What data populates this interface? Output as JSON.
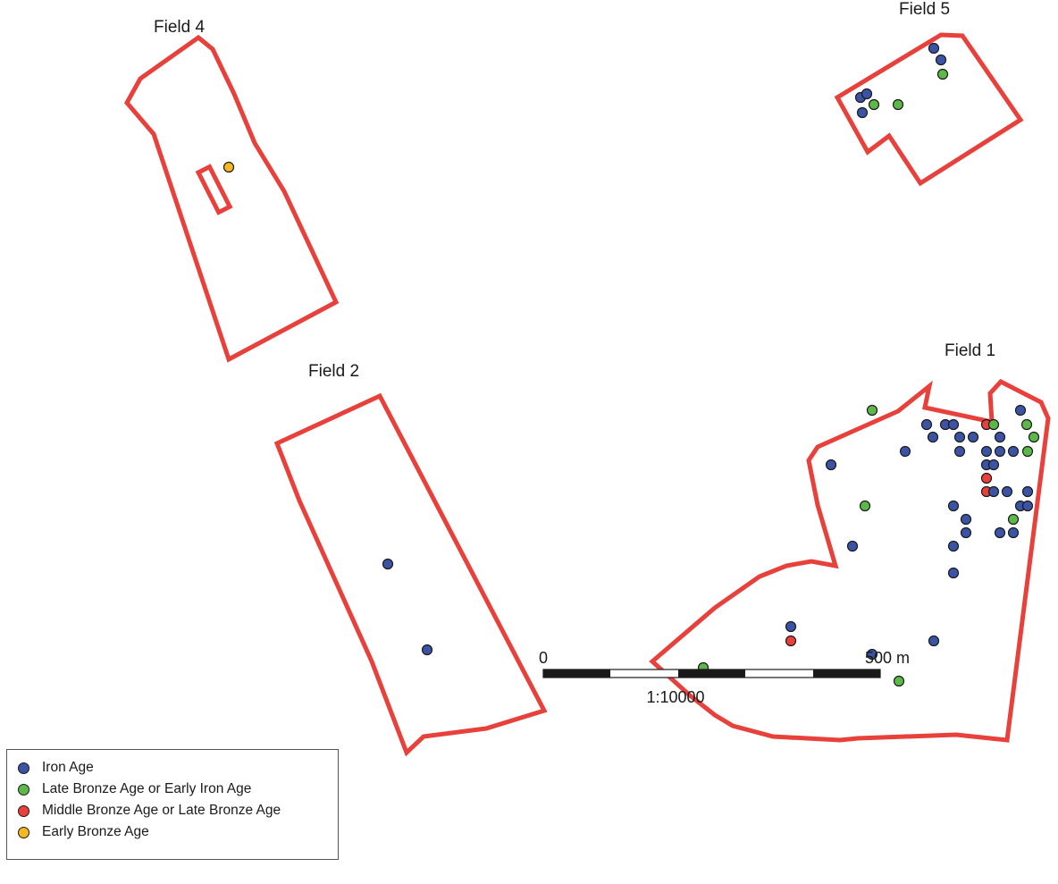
{
  "fields": [
    {
      "label": "Field 4"
    },
    {
      "label": "Field 5"
    },
    {
      "label": "Field 2"
    },
    {
      "label": "Field 1"
    }
  ],
  "legend": {
    "items": [
      {
        "key": "iron",
        "label": "Iron Age",
        "color": "#3b53a4"
      },
      {
        "key": "lbia",
        "label": "Late Bronze Age or Early Iron Age",
        "color": "#5cb848"
      },
      {
        "key": "mbla",
        "label": "Middle Bronze Age or Late Bronze Age",
        "color": "#e8403a"
      },
      {
        "key": "eba",
        "label": "Early Bronze Age",
        "color": "#f6b820"
      }
    ]
  },
  "scale_bar": {
    "start_label": "0",
    "end_label": "500 m",
    "ratio": "1:10000"
  },
  "style": {
    "outline_color": "#e8403a"
  }
}
